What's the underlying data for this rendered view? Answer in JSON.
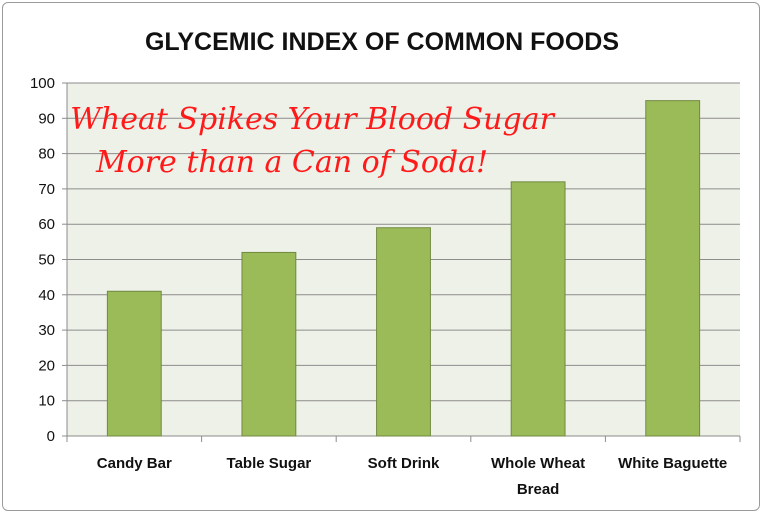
{
  "chart_data": {
    "type": "bar",
    "title": "GLYCEMIC INDEX OF COMMON FOODS",
    "categories": [
      "Candy Bar",
      "Table Sugar",
      "Soft Drink",
      "Whole Wheat Bread",
      "White Baguette"
    ],
    "category_lines": [
      [
        "Candy Bar"
      ],
      [
        "Table Sugar"
      ],
      [
        "Soft Drink"
      ],
      [
        "Whole Wheat",
        "Bread"
      ],
      [
        "White Baguette"
      ]
    ],
    "values": [
      41,
      52,
      59,
      72,
      95
    ],
    "ylim": [
      0,
      100
    ],
    "yticks": [
      0,
      10,
      20,
      30,
      40,
      50,
      60,
      70,
      80,
      90,
      100
    ],
    "grid": true,
    "legend": "none",
    "annotation": [
      "Wheat Spikes Your Blood Sugar",
      "More than a Can of Soda!"
    ],
    "colors": {
      "bar_fill": "#9bbb59",
      "bar_stroke": "#71893f",
      "plot_background": "#eef1e8",
      "gridline": "#8c8c8c",
      "annotation": "#ff1a1a"
    }
  }
}
